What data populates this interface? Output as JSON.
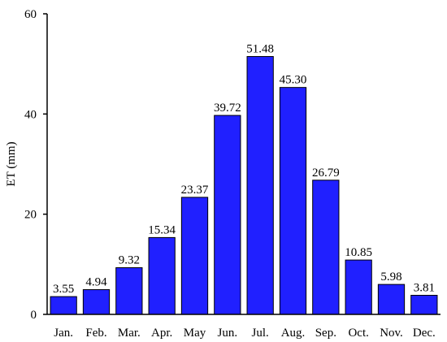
{
  "chart_data": {
    "type": "bar",
    "categories": [
      "Jan.",
      "Feb.",
      "Mar.",
      "Apr.",
      "May",
      "Jun.",
      "Jul.",
      "Aug.",
      "Sep.",
      "Oct.",
      "Nov.",
      "Dec."
    ],
    "values": [
      3.55,
      4.94,
      9.32,
      15.34,
      23.37,
      39.72,
      51.48,
      45.3,
      26.79,
      10.85,
      5.98,
      3.81
    ],
    "value_labels": [
      "3.55",
      "4.94",
      "9.32",
      "15.34",
      "23.37",
      "39.72",
      "51.48",
      "45.30",
      "26.79",
      "10.85",
      "5.98",
      "3.81"
    ],
    "title": "",
    "xlabel": "",
    "ylabel": "ET (mm)",
    "ylim": [
      0,
      60
    ],
    "yticks": [
      0,
      20,
      40,
      60
    ],
    "grid": false,
    "bar_color": "#2020ff"
  }
}
